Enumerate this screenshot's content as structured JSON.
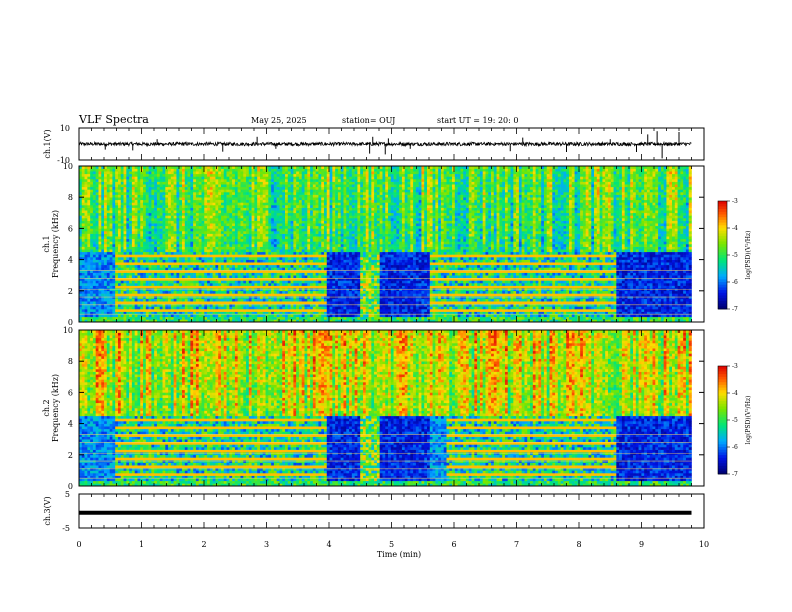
{
  "header": {
    "title": "VLF Spectra",
    "date": "May 25, 2025",
    "station": "station= OUJ",
    "start": "start  UT  =   19: 20: 0"
  },
  "chart_data": [
    {
      "type": "line",
      "name": "ch1",
      "ylabel": "ch.1(V)",
      "ylim": [
        -10,
        10
      ],
      "ticks": [
        {
          "v": 10,
          "label": "10"
        },
        {
          "v": -10,
          "label": "-10"
        }
      ],
      "xlim": [
        0,
        10
      ],
      "baseline": 0,
      "spikes": [
        {
          "t": 0.42,
          "v": -3.5
        },
        {
          "t": 0.86,
          "v": -4.0
        },
        {
          "t": 1.25,
          "v": 3.0
        },
        {
          "t": 2.3,
          "v": -4.8
        },
        {
          "t": 2.85,
          "v": 4.5
        },
        {
          "t": 3.15,
          "v": -3.0
        },
        {
          "t": 4.65,
          "v": -6.0
        },
        {
          "t": 4.7,
          "v": 4.5
        },
        {
          "t": 4.9,
          "v": -6.5
        },
        {
          "t": 4.95,
          "v": 3.5
        },
        {
          "t": 5.3,
          "v": -3.0
        },
        {
          "t": 6.9,
          "v": -4.5
        },
        {
          "t": 7.1,
          "v": 4.0
        },
        {
          "t": 7.8,
          "v": -5.0
        },
        {
          "t": 8.5,
          "v": 3.0
        },
        {
          "t": 8.92,
          "v": -5.0
        },
        {
          "t": 9.1,
          "v": 6.0
        },
        {
          "t": 9.25,
          "v": 8.0
        },
        {
          "t": 9.33,
          "v": -9.0
        },
        {
          "t": 9.6,
          "v": 7.5
        }
      ]
    },
    {
      "type": "heatmap",
      "name": "ch1-spectrum",
      "ylabel_top": "ch.1",
      "ylabel": "Frequency (kHz)",
      "ylim": [
        0,
        10
      ],
      "yticks": [
        0,
        2,
        4,
        6,
        8,
        10
      ],
      "xlim": [
        0,
        9.8
      ],
      "colorbar": {
        "label": "log(PSD)(V²/Hz)",
        "range": [
          -7,
          -3
        ],
        "ticks": [
          -3,
          -4,
          -5,
          -6,
          -7
        ]
      },
      "features": {
        "band_edge_khz": 4.5,
        "band_interval_min": [
          [
            0.6,
            3.95
          ],
          [
            5.6,
            8.6
          ]
        ],
        "broadband_burst_min": [
          4.5,
          4.8
        ],
        "dark_gap_min": [
          [
            3.95,
            4.5
          ],
          [
            4.8,
            5.6
          ],
          [
            8.6,
            9.8
          ]
        ]
      }
    },
    {
      "type": "heatmap",
      "name": "ch2-spectrum",
      "ylabel_top": "ch.2",
      "ylabel": "Frequency (kHz)",
      "ylim": [
        0,
        10
      ],
      "yticks": [
        0,
        2,
        4,
        6,
        8,
        10
      ],
      "xlim": [
        0,
        9.8
      ],
      "colorbar": {
        "label": "log(PSD)(V²/Hz)",
        "range": [
          -7,
          -3
        ],
        "ticks": [
          -3,
          -4,
          -5,
          -6,
          -7
        ]
      },
      "features": {
        "band_edge_khz": 4.5,
        "band_interval_min": [
          [
            0.6,
            3.95
          ],
          [
            5.9,
            8.6
          ]
        ],
        "broadband_burst_min": [
          4.5,
          4.8
        ],
        "dark_gap_min": [
          [
            3.95,
            4.5
          ],
          [
            4.8,
            5.6
          ],
          [
            8.6,
            9.8
          ]
        ]
      }
    },
    {
      "type": "line",
      "name": "ch3",
      "ylabel": "ch.3(V)",
      "ylim": [
        -5,
        5
      ],
      "ticks": [
        {
          "v": 5,
          "label": "5"
        },
        {
          "v": -5,
          "label": "-5"
        }
      ],
      "xlim": [
        0,
        10
      ],
      "value": -0.5,
      "xlabel": "Time (min)",
      "xticks": [
        0,
        1,
        2,
        3,
        4,
        5,
        6,
        7,
        8,
        9,
        10
      ]
    }
  ]
}
